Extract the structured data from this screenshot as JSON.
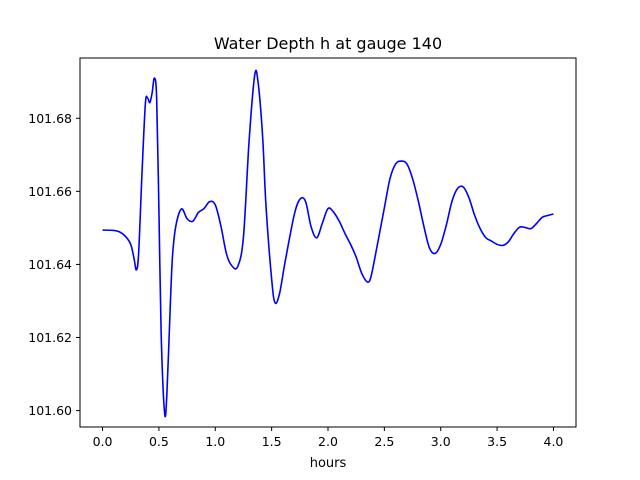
{
  "chart_data": {
    "type": "line",
    "title": "Water Depth h at gauge 140",
    "xlabel": "hours",
    "ylabel": "",
    "xlim": [
      -0.2,
      4.2
    ],
    "ylim": [
      101.5955,
      101.6965
    ],
    "xticks": [
      0.0,
      0.5,
      1.0,
      1.5,
      2.0,
      2.5,
      3.0,
      3.5,
      4.0
    ],
    "xtick_labels": [
      "0.0",
      "0.5",
      "1.0",
      "1.5",
      "2.0",
      "2.5",
      "3.0",
      "3.5",
      "4.0"
    ],
    "yticks": [
      101.6,
      101.62,
      101.64,
      101.66,
      101.68
    ],
    "ytick_labels": [
      "101.60",
      "101.62",
      "101.64",
      "101.66",
      "101.68"
    ],
    "grid": false,
    "series": [
      {
        "color": "#0000ff",
        "x": [
          0.0,
          0.1,
          0.15,
          0.2,
          0.25,
          0.28,
          0.3,
          0.32,
          0.35,
          0.38,
          0.4,
          0.42,
          0.44,
          0.46,
          0.48,
          0.5,
          0.52,
          0.55,
          0.57,
          0.6,
          0.62,
          0.65,
          0.7,
          0.75,
          0.8,
          0.85,
          0.9,
          0.95,
          1.0,
          1.05,
          1.1,
          1.15,
          1.2,
          1.25,
          1.3,
          1.35,
          1.38,
          1.42,
          1.45,
          1.5,
          1.53,
          1.57,
          1.62,
          1.7,
          1.75,
          1.8,
          1.85,
          1.9,
          1.95,
          2.0,
          2.05,
          2.1,
          2.15,
          2.2,
          2.25,
          2.3,
          2.35,
          2.38,
          2.42,
          2.5,
          2.55,
          2.6,
          2.65,
          2.7,
          2.75,
          2.8,
          2.85,
          2.9,
          2.95,
          3.0,
          3.05,
          3.1,
          3.15,
          3.2,
          3.25,
          3.3,
          3.35,
          3.4,
          3.45,
          3.5,
          3.55,
          3.6,
          3.65,
          3.7,
          3.75,
          3.8,
          3.85,
          3.9,
          3.95,
          4.0
        ],
        "y": [
          101.6494,
          101.6493,
          101.6489,
          101.6478,
          101.6455,
          101.6415,
          101.6385,
          101.643,
          101.665,
          101.684,
          101.6855,
          101.6843,
          101.687,
          101.691,
          101.6855,
          101.655,
          101.621,
          101.5995,
          101.604,
          101.628,
          101.642,
          101.6505,
          101.6552,
          101.6525,
          101.6518,
          101.6542,
          101.6553,
          101.6572,
          101.6563,
          101.6505,
          101.6428,
          101.6395,
          101.6395,
          101.6475,
          101.6738,
          101.6918,
          101.6898,
          101.675,
          101.656,
          101.636,
          101.6295,
          101.632,
          101.6408,
          101.6535,
          101.6578,
          101.6573,
          101.6503,
          101.6473,
          101.6513,
          101.6553,
          101.6543,
          101.6518,
          101.6485,
          101.6455,
          101.642,
          101.6375,
          101.6352,
          101.6365,
          101.6425,
          101.6555,
          101.6635,
          101.6675,
          101.6683,
          101.6675,
          101.6635,
          101.6575,
          101.6505,
          101.6445,
          101.643,
          101.6455,
          101.6508,
          101.6573,
          101.6608,
          101.6612,
          101.6583,
          101.6535,
          101.6498,
          101.6473,
          101.6464,
          101.6455,
          101.6452,
          101.6462,
          101.6485,
          101.6502,
          101.6501,
          101.6498,
          101.6512,
          101.6529,
          101.6534,
          101.6538
        ]
      }
    ]
  }
}
